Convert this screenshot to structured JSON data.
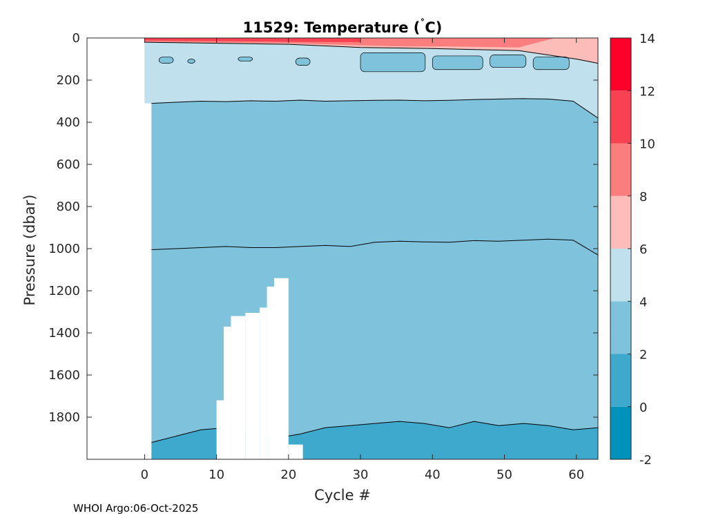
{
  "chart_data": {
    "type": "heatmap",
    "title": "11529:  Temperature (",
    "title_degree": "˚",
    "title_unit": "C)",
    "xlabel": "Cycle #",
    "ylabel": "Pressure (dbar)",
    "xlim": [
      -8,
      63
    ],
    "ylim": [
      2000,
      0
    ],
    "x_ticks": [
      0,
      10,
      20,
      30,
      40,
      50,
      60
    ],
    "y_ticks": [
      0,
      200,
      400,
      600,
      800,
      1000,
      1200,
      1400,
      1600,
      1800
    ],
    "colorbar": {
      "levels": [
        -2,
        0,
        2,
        4,
        6,
        8,
        10,
        12,
        14
      ],
      "colors": [
        "#0092bb",
        "#3fa9cd",
        "#7fc2dc",
        "#bfe0ec",
        "#fcbdb9",
        "#fb7e7f",
        "#f94251",
        "#fb0228"
      ]
    },
    "contours": [
      {
        "level": 4,
        "pressure": [
          310,
          305,
          300,
          302,
          298,
          300,
          295,
          300,
          298,
          296,
          295,
          298,
          296,
          292,
          290,
          288,
          290,
          300,
          380
        ]
      },
      {
        "level": 2,
        "pressure": [
          1005,
          1000,
          995,
          990,
          995,
          995,
          990,
          985,
          990,
          970,
          965,
          968,
          970,
          962,
          965,
          960,
          955,
          960,
          1030
        ]
      },
      {
        "level": 0,
        "pressure": [
          1920,
          1890,
          1860,
          1850,
          1870,
          1900,
          1880,
          1850,
          1840,
          1830,
          1820,
          1830,
          1850,
          1820,
          1840,
          1830,
          1840,
          1860,
          1850
        ]
      }
    ],
    "data_start_cycle": 0,
    "gaps": [
      {
        "cycle_range": [
          10,
          11
        ],
        "pressure_range": [
          1720,
          2000
        ]
      },
      {
        "cycle_range": [
          11,
          12
        ],
        "pressure_range": [
          1370,
          2000
        ]
      },
      {
        "cycle_range": [
          12,
          14
        ],
        "pressure_range": [
          1320,
          2000
        ]
      },
      {
        "cycle_range": [
          14,
          16
        ],
        "pressure_range": [
          1305,
          2000
        ]
      },
      {
        "cycle_range": [
          16,
          17
        ],
        "pressure_range": [
          1280,
          2000
        ]
      },
      {
        "cycle_range": [
          17,
          18
        ],
        "pressure_range": [
          1180,
          2000
        ]
      },
      {
        "cycle_range": [
          18,
          20
        ],
        "pressure_range": [
          1140,
          2000
        ]
      },
      {
        "cycle_range": [
          20,
          22
        ],
        "pressure_range": [
          1930,
          2000
        ]
      }
    ]
  },
  "footer": "WHOI Argo:06-Oct-2025"
}
